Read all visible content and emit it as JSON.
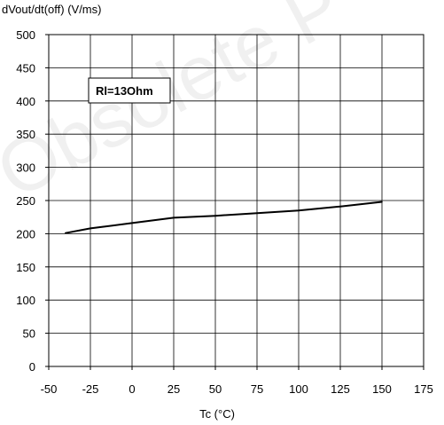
{
  "chart_data": {
    "type": "line",
    "title": "",
    "ylabel": "dVout/dt(off) (V/ms)",
    "xlabel": "Tc (°C)",
    "xlim": [
      -50,
      175
    ],
    "ylim": [
      0,
      500
    ],
    "xticks": [
      -50,
      -25,
      0,
      25,
      50,
      75,
      100,
      125,
      150,
      175
    ],
    "yticks": [
      0,
      50,
      100,
      150,
      200,
      250,
      300,
      350,
      400,
      450,
      500
    ],
    "grid": true,
    "annotation": "Rl=13Ohm",
    "watermark": "Obsolete P",
    "series": [
      {
        "x": [
          -40,
          -25,
          0,
          25,
          50,
          75,
          100,
          125,
          150
        ],
        "y": [
          201,
          208,
          216,
          224,
          227,
          231,
          235,
          241,
          248
        ],
        "color": "#000000"
      }
    ]
  }
}
